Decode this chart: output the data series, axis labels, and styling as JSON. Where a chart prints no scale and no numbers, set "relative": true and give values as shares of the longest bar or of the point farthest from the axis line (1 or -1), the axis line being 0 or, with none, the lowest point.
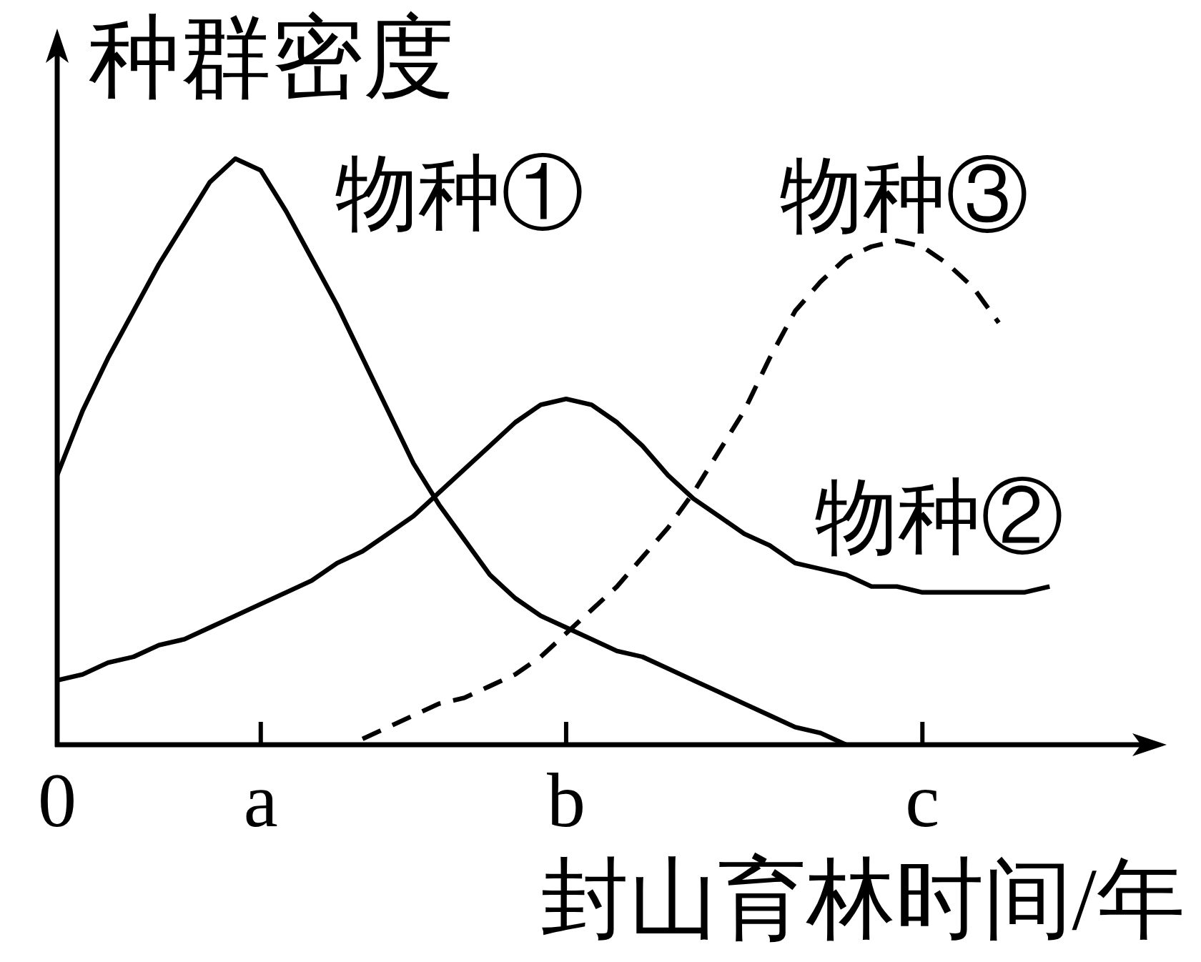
{
  "chart_data": {
    "type": "line",
    "xlabel": "封山育林时间/年",
    "ylabel": "种群密度",
    "relative": true,
    "categories": [
      "0",
      null,
      null,
      null,
      null,
      null,
      null,
      null,
      "a",
      null,
      null,
      null,
      null,
      null,
      null,
      null,
      null,
      null,
      null,
      null,
      "b",
      null,
      null,
      null,
      null,
      null,
      null,
      null,
      null,
      null,
      null,
      null,
      null,
      null,
      "c",
      null,
      null,
      null,
      null,
      null
    ],
    "series": [
      {
        "name": "物种①",
        "color": "#000000",
        "line_style": "solid",
        "values": [
          0.46,
          0.57,
          0.66,
          0.74,
          0.82,
          0.89,
          0.96,
          1,
          0.98,
          0.91,
          0.83,
          0.75,
          0.66,
          0.57,
          0.48,
          0.41,
          0.35,
          0.29,
          0.25,
          0.22,
          0.2,
          0.18,
          0.16,
          0.15,
          0.13,
          0.11,
          0.09,
          0.07,
          0.05,
          0.03,
          0.02,
          0,
          null,
          null,
          null,
          null,
          null,
          null,
          null,
          null
        ]
      },
      {
        "name": "物种②",
        "color": "#000000",
        "line_style": "solid",
        "values": [
          0.11,
          0.12,
          0.14,
          0.15,
          0.17,
          0.18,
          0.2,
          0.22,
          0.24,
          0.26,
          0.28,
          0.31,
          0.33,
          0.36,
          0.39,
          0.43,
          0.47,
          0.51,
          0.55,
          0.58,
          0.59,
          0.58,
          0.55,
          0.51,
          0.46,
          0.42,
          0.39,
          0.36,
          0.34,
          0.31,
          0.3,
          0.29,
          0.27,
          0.27,
          0.26,
          0.26,
          0.26,
          0.26,
          0.26,
          0.27
        ]
      },
      {
        "name": "物种③",
        "color": "#000000",
        "line_style": "dashed",
        "values": [
          null,
          null,
          null,
          null,
          null,
          null,
          null,
          null,
          null,
          null,
          null,
          null,
          0.01,
          0.03,
          0.05,
          0.07,
          0.08,
          0.1,
          0.12,
          0.15,
          0.19,
          0.23,
          0.27,
          0.32,
          0.37,
          0.43,
          0.5,
          0.57,
          0.66,
          0.74,
          0.79,
          0.83,
          0.85,
          0.86,
          0.85,
          0.82,
          0.78,
          0.72,
          null,
          null
        ]
      }
    ]
  }
}
